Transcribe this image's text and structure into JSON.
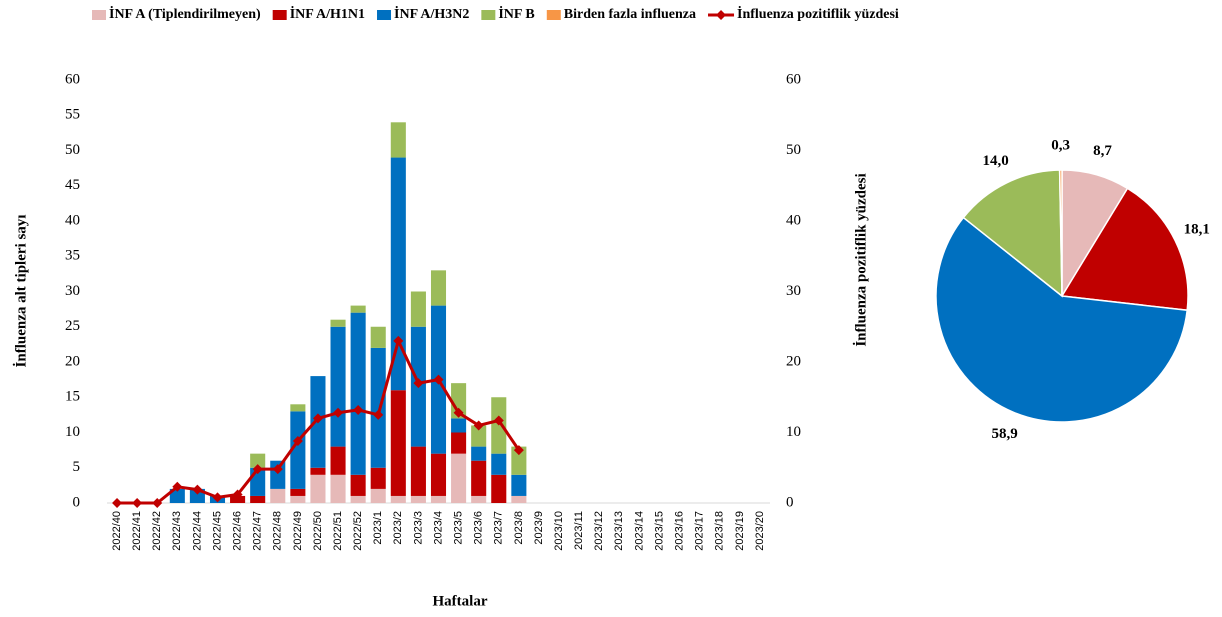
{
  "chart_data": [
    {
      "type": "bar",
      "stacked": true,
      "x_label": "Haftalar",
      "y_label": "İnfluenza alt tipleri sayı",
      "y2_label": "İnfluenza pozitiflik yüzdesi",
      "categories": [
        "2022/40",
        "2022/41",
        "2022/42",
        "2022/43",
        "2022/44",
        "2022/45",
        "2022/46",
        "2022/47",
        "2022/48",
        "2022/49",
        "2022/50",
        "2022/51",
        "2022/52",
        "2023/1",
        "2023/2",
        "2023/3",
        "2023/4",
        "2023/5",
        "2023/6",
        "2023/7",
        "2023/8",
        "2023/9",
        "2023/10",
        "2023/11",
        "2023/12",
        "2023/13",
        "2023/14",
        "2023/15",
        "2023/16",
        "2023/17",
        "2023/18",
        "2023/19",
        "2023/20"
      ],
      "series": [
        {
          "name": "İNF A (Tiplendirilmeyen)",
          "color": "#e6b9b8",
          "values": [
            0,
            0,
            0,
            0,
            0,
            0,
            0,
            0,
            2,
            1,
            4,
            4,
            1,
            2,
            1,
            1,
            1,
            7,
            1,
            0,
            1,
            null,
            null,
            null,
            null,
            null,
            null,
            null,
            null,
            null,
            null,
            null,
            null
          ]
        },
        {
          "name": "İNF A/H1N1",
          "color": "#c00000",
          "values": [
            0,
            0,
            0,
            0,
            0,
            0,
            1,
            1,
            0,
            1,
            1,
            4,
            3,
            3,
            15,
            7,
            6,
            3,
            5,
            4,
            0,
            null,
            null,
            null,
            null,
            null,
            null,
            null,
            null,
            null,
            null,
            null,
            null
          ]
        },
        {
          "name": "İNF A/H3N2",
          "color": "#0070c0",
          "values": [
            0,
            0,
            0,
            2,
            2,
            1,
            0,
            4,
            4,
            11,
            13,
            17,
            23,
            17,
            33,
            17,
            21,
            2,
            2,
            3,
            3,
            null,
            null,
            null,
            null,
            null,
            null,
            null,
            null,
            null,
            null,
            null,
            null
          ]
        },
        {
          "name": "İNF B",
          "color": "#9bbb59",
          "values": [
            0,
            0,
            0,
            0,
            0,
            0,
            0,
            2,
            0,
            1,
            0,
            1,
            1,
            3,
            5,
            5,
            5,
            5,
            3,
            8,
            4,
            null,
            null,
            null,
            null,
            null,
            null,
            null,
            null,
            null,
            null,
            null,
            null
          ]
        },
        {
          "name": "Birden fazla influenza",
          "color": "#f79646",
          "values": [
            0,
            0,
            0,
            0,
            0,
            0,
            0,
            0,
            0,
            0,
            0,
            0,
            0,
            0,
            0,
            0,
            0,
            0,
            0,
            0,
            0,
            null,
            null,
            null,
            null,
            null,
            null,
            null,
            null,
            null,
            null,
            null,
            null
          ]
        },
        {
          "name": "İnfluenza pozitiflik yüzdesi",
          "color": "#c00000",
          "type": "line",
          "axis": "y2",
          "values": [
            0,
            0,
            0,
            2.3,
            1.9,
            0.8,
            1.2,
            4.8,
            4.8,
            8.8,
            12,
            12.8,
            13.2,
            12.5,
            23,
            17,
            17.5,
            12.8,
            11,
            11.7,
            7.5,
            null,
            null,
            null,
            null,
            null,
            null,
            null,
            null,
            null,
            null,
            null,
            null
          ]
        }
      ],
      "ylim": [
        0,
        60
      ],
      "yticks": [
        0,
        5,
        10,
        15,
        20,
        25,
        30,
        35,
        40,
        45,
        50,
        55,
        60
      ],
      "y2lim": [
        0,
        60
      ],
      "y2ticks": [
        0,
        10,
        20,
        30,
        40,
        50,
        60
      ],
      "legend": "top"
    },
    {
      "type": "pie",
      "values": [
        8.7,
        18.1,
        58.9,
        14.0,
        0.3
      ],
      "value_labels": [
        "8,7",
        "18,1",
        "58,9",
        "14,0",
        "0,3"
      ],
      "colors": [
        "#e6b9b8",
        "#c00000",
        "#0070c0",
        "#9bbb59",
        "#f79646"
      ]
    }
  ]
}
